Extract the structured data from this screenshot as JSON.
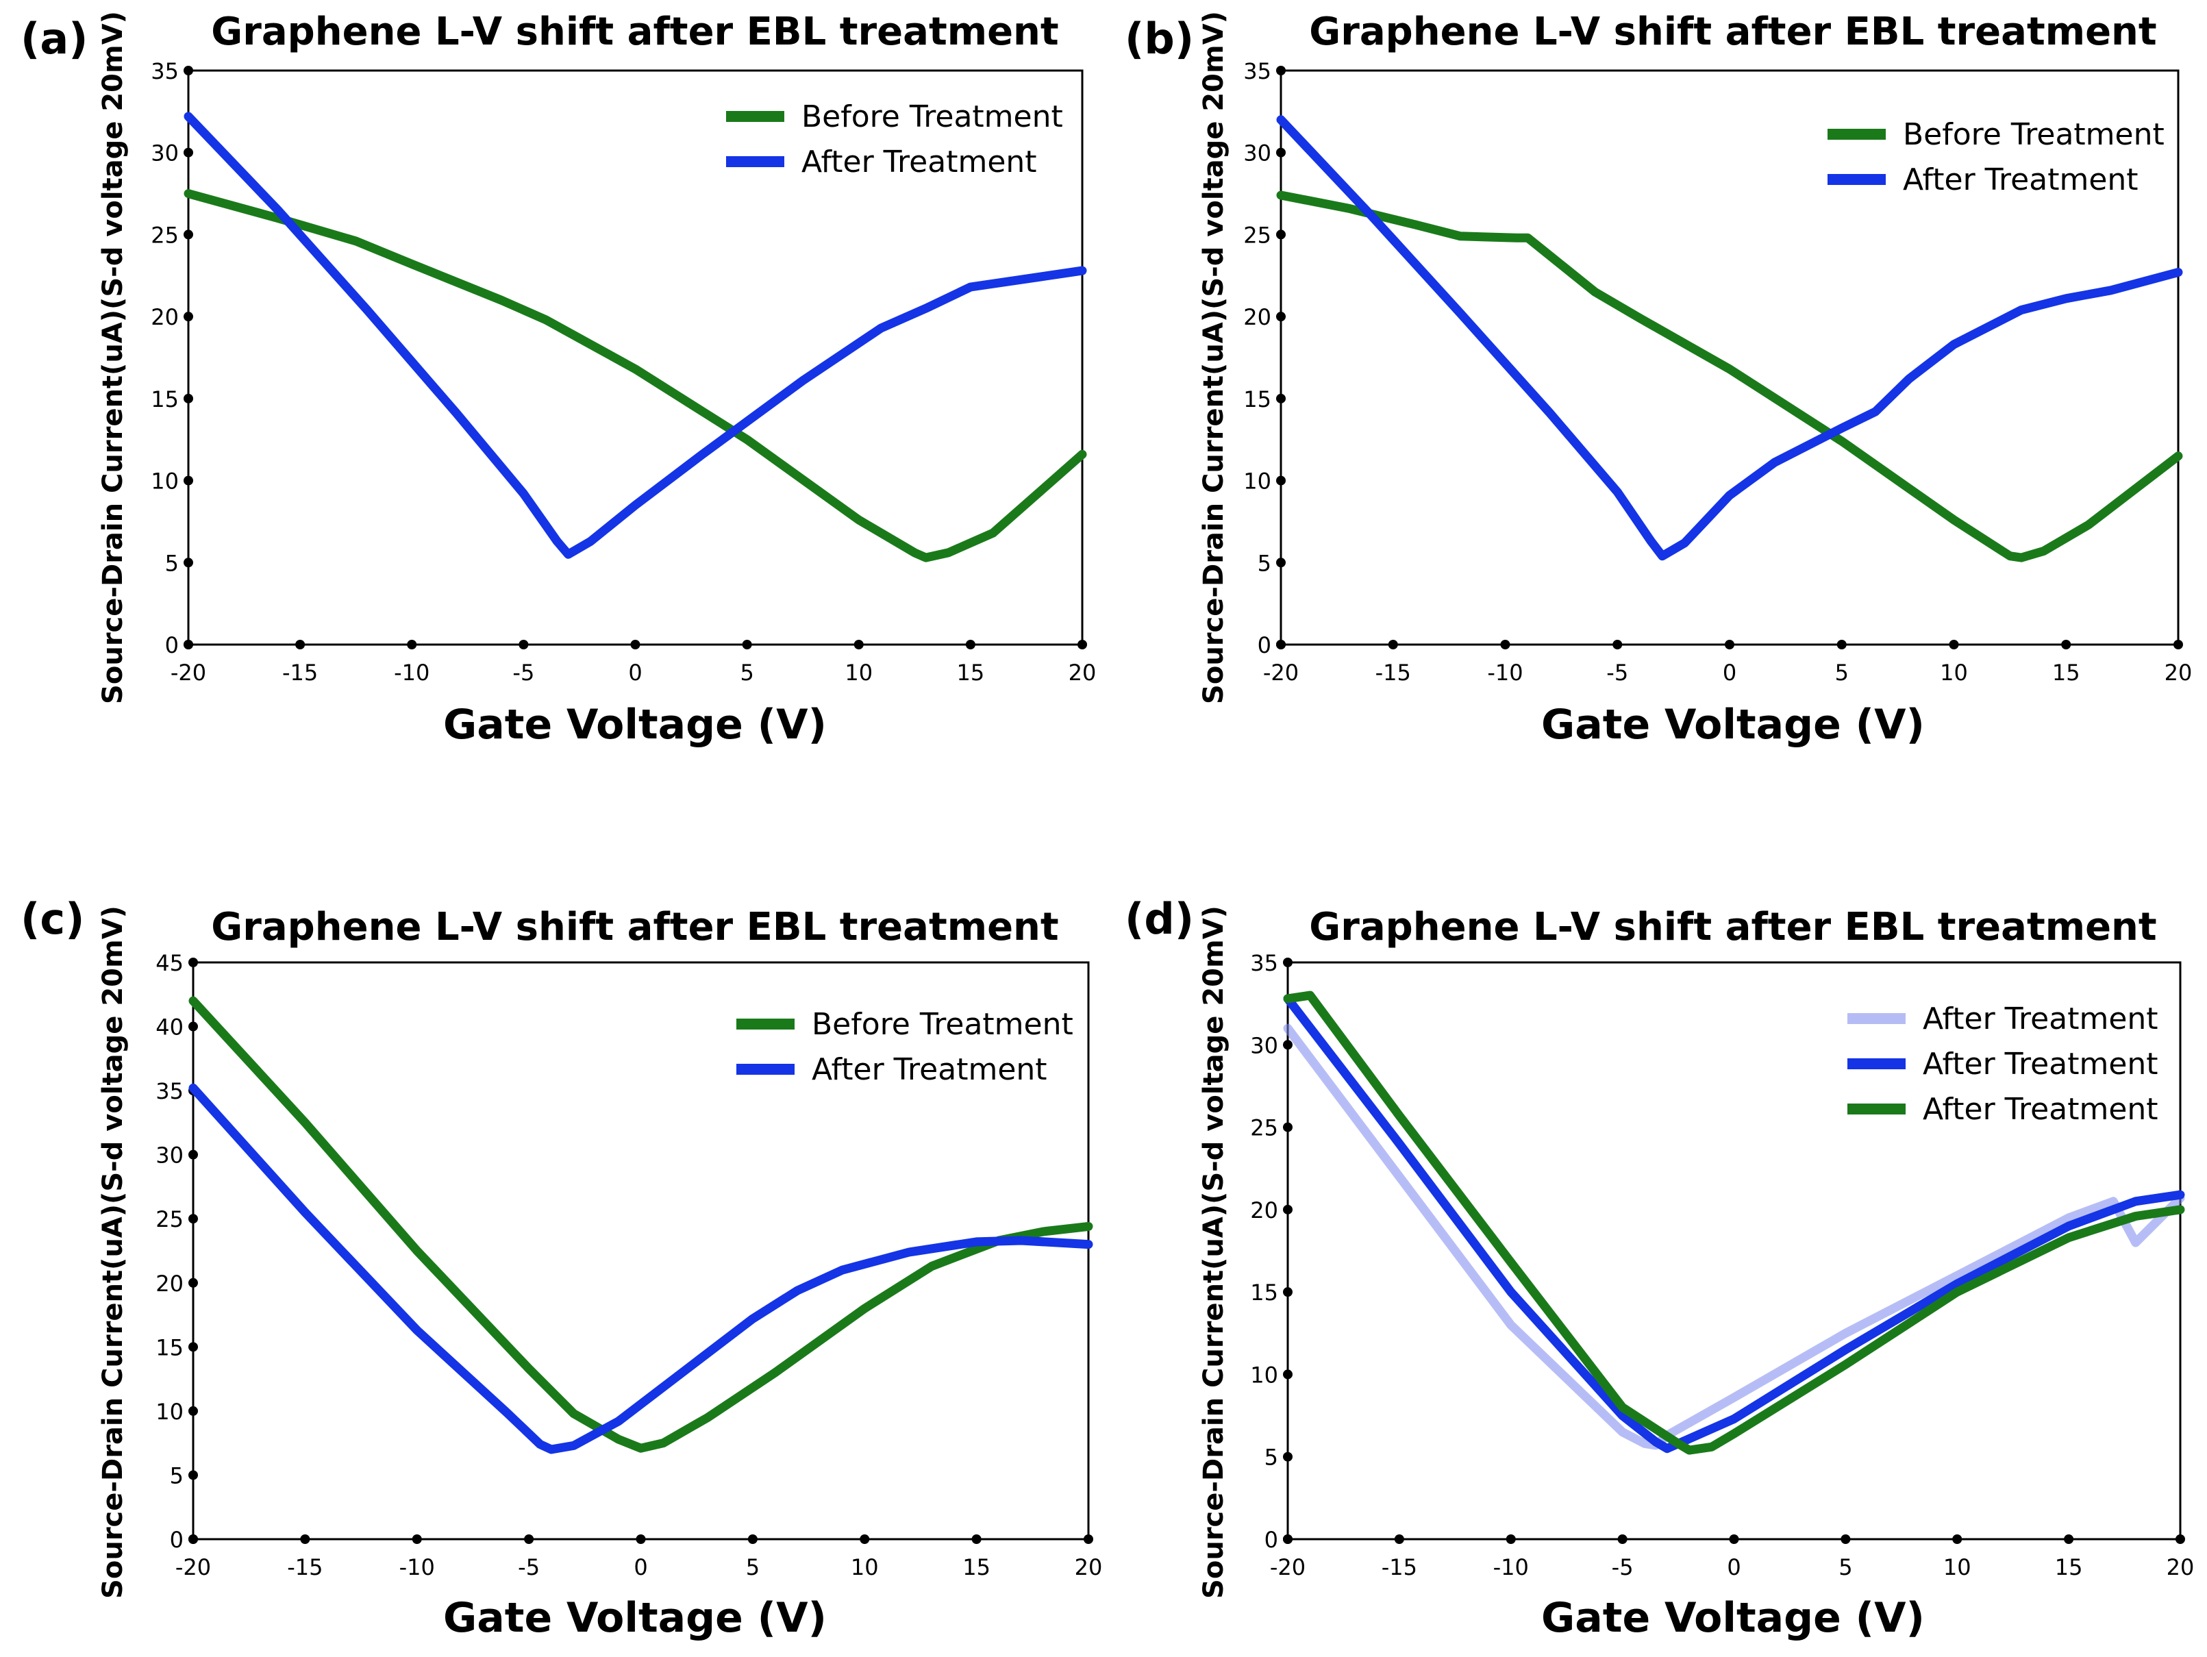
{
  "chart_data": [
    {
      "panel": "(a)",
      "type": "line",
      "title": "Graphene L-V shift after EBL treatment",
      "xlabel": "Gate Voltage (V)",
      "ylabel": "Source-Drain Current(uA)(S-d voltage 20mV)",
      "xlim": [
        -20,
        20
      ],
      "ylim": [
        0,
        35
      ],
      "xticks": [
        -20,
        -15,
        -10,
        -5,
        0,
        5,
        10,
        15,
        20
      ],
      "yticks": [
        0,
        5,
        10,
        15,
        20,
        25,
        30,
        35
      ],
      "legend_position": "top-right",
      "series": [
        {
          "name": "Before Treatment",
          "color": "#1a7a1a",
          "opacity": 1,
          "x": [
            -20,
            -16,
            -12.5,
            -10,
            -6,
            -4,
            0,
            5,
            10,
            12.5,
            13,
            14,
            16,
            20
          ],
          "y": [
            27.5,
            26,
            24.6,
            23.2,
            21,
            19.8,
            16.8,
            12.5,
            7.6,
            5.6,
            5.3,
            5.6,
            6.8,
            11.6
          ]
        },
        {
          "name": "After Treatment",
          "color": "#1434e6",
          "opacity": 1,
          "x": [
            -20,
            -16,
            -12,
            -8,
            -5,
            -3.5,
            -3,
            -2,
            0,
            3,
            5,
            7.5,
            11,
            13,
            15,
            18,
            20
          ],
          "y": [
            32.2,
            26.5,
            20.4,
            14.1,
            9.2,
            6.3,
            5.5,
            6.3,
            8.5,
            11.6,
            13.6,
            16.1,
            19.3,
            20.5,
            21.8,
            22.4,
            22.8
          ]
        }
      ]
    },
    {
      "panel": "(b)",
      "type": "line",
      "title": "Graphene L-V shift after EBL treatment",
      "xlabel": "Gate Voltage (V)",
      "ylabel": "Source-Drain Current(uA)(S-d voltage 20mV)",
      "xlim": [
        -20,
        20
      ],
      "ylim": [
        0,
        35
      ],
      "xticks": [
        -20,
        -15,
        -10,
        -5,
        0,
        5,
        10,
        15,
        20
      ],
      "yticks": [
        0,
        5,
        10,
        15,
        20,
        25,
        30,
        35
      ],
      "legend_position": "top-right",
      "series": [
        {
          "name": "Before Treatment",
          "color": "#1a7a1a",
          "opacity": 1,
          "x": [
            -20,
            -17,
            -14,
            -12,
            -9.5,
            -9,
            -6,
            -4,
            0,
            5,
            10,
            12.5,
            13,
            14,
            16,
            20
          ],
          "y": [
            27.4,
            26.6,
            25.6,
            24.9,
            24.8,
            24.8,
            21.5,
            19.9,
            16.8,
            12.4,
            7.6,
            5.4,
            5.3,
            5.7,
            7.3,
            11.5
          ]
        },
        {
          "name": "After Treatment",
          "color": "#1434e6",
          "opacity": 1,
          "x": [
            -20,
            -16,
            -12,
            -8,
            -5,
            -3.5,
            -3,
            -2,
            0,
            2,
            5,
            6.5,
            8,
            10,
            13,
            15,
            17,
            20
          ],
          "y": [
            32,
            26.2,
            20.2,
            14.1,
            9.3,
            6.3,
            5.4,
            6.2,
            9.1,
            11.1,
            13.2,
            14.2,
            16.2,
            18.3,
            20.4,
            21.1,
            21.6,
            22.7
          ]
        }
      ]
    },
    {
      "panel": "(c)",
      "type": "line",
      "title": "Graphene L-V shift after EBL treatment",
      "xlabel": "Gate Voltage (V)",
      "ylabel": "Source-Drain Current(uA)(S-d voltage 20mV)",
      "xlim": [
        -20,
        20
      ],
      "ylim": [
        0,
        45
      ],
      "xticks": [
        -20,
        -15,
        -10,
        -5,
        0,
        5,
        10,
        15,
        20
      ],
      "yticks": [
        0,
        5,
        10,
        15,
        20,
        25,
        30,
        35,
        40,
        45
      ],
      "legend_position": "top-right",
      "series": [
        {
          "name": "Before Treatment",
          "color": "#1a7a1a",
          "opacity": 1,
          "x": [
            -20,
            -15,
            -10,
            -5,
            -3,
            -1,
            0,
            1,
            3,
            6,
            10,
            13,
            16,
            18,
            20
          ],
          "y": [
            42,
            32.5,
            22.5,
            13.3,
            9.8,
            7.8,
            7.1,
            7.5,
            9.5,
            13,
            18,
            21.3,
            23.3,
            24,
            24.4
          ]
        },
        {
          "name": "After Treatment",
          "color": "#1434e6",
          "opacity": 1,
          "x": [
            -20,
            -15,
            -10,
            -6,
            -4.5,
            -4,
            -3,
            -1,
            2,
            5,
            7,
            9,
            12,
            15,
            17,
            20
          ],
          "y": [
            35.2,
            25.5,
            16.3,
            9.9,
            7.4,
            7,
            7.3,
            9.2,
            13.2,
            17.2,
            19.4,
            21,
            22.4,
            23.2,
            23.3,
            23
          ]
        }
      ]
    },
    {
      "panel": "(d)",
      "type": "line",
      "title": "Graphene L-V shift after EBL treatment",
      "xlabel": "Gate Voltage (V)",
      "ylabel": "Source-Drain Current(uA)(S-d voltage 20mV)",
      "xlim": [
        -20,
        20
      ],
      "ylim": [
        0,
        35
      ],
      "xticks": [
        -20,
        -15,
        -10,
        -5,
        0,
        5,
        10,
        15,
        20
      ],
      "yticks": [
        0,
        5,
        10,
        15,
        20,
        25,
        30,
        35
      ],
      "legend_position": "top-right",
      "series": [
        {
          "name": "After Treatment",
          "color": "#7a86ee",
          "opacity": 0.55,
          "x": [
            -20,
            -15,
            -10,
            -5,
            -4,
            -3.5,
            -3,
            0,
            5,
            10,
            15,
            17,
            18,
            20
          ],
          "y": [
            31,
            22,
            13,
            6.5,
            5.8,
            5.7,
            6.3,
            8.6,
            12.5,
            16,
            19.5,
            20.5,
            18,
            20.7
          ]
        },
        {
          "name": "After Treatment",
          "color": "#1434e6",
          "opacity": 1,
          "x": [
            -20,
            -15,
            -10,
            -5,
            -3.5,
            -3,
            -2,
            0,
            5,
            10,
            15,
            18,
            20
          ],
          "y": [
            32.8,
            24,
            15,
            7.5,
            5.9,
            5.5,
            6.1,
            7.3,
            11.5,
            15.5,
            19,
            20.5,
            20.9
          ]
        },
        {
          "name": "After Treatment",
          "color": "#1a7a1a",
          "opacity": 1,
          "x": [
            -20,
            -19,
            -15,
            -10,
            -5,
            -2.5,
            -2,
            -1,
            0,
            5,
            10,
            15,
            18,
            20
          ],
          "y": [
            32.8,
            33,
            25.7,
            16.8,
            8,
            5.8,
            5.4,
            5.6,
            6.4,
            10.6,
            15,
            18.3,
            19.6,
            20
          ]
        }
      ]
    }
  ]
}
